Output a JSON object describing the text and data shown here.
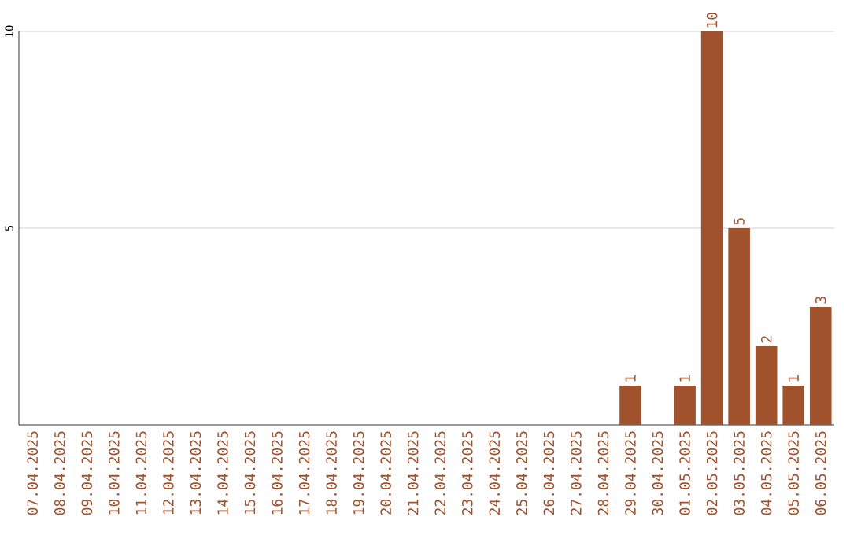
{
  "chart_data": {
    "type": "bar",
    "categories": [
      "07.04.2025",
      "08.04.2025",
      "09.04.2025",
      "10.04.2025",
      "11.04.2025",
      "12.04.2025",
      "13.04.2025",
      "14.04.2025",
      "15.04.2025",
      "16.04.2025",
      "17.04.2025",
      "18.04.2025",
      "19.04.2025",
      "20.04.2025",
      "21.04.2025",
      "22.04.2025",
      "23.04.2025",
      "24.04.2025",
      "25.04.2025",
      "26.04.2025",
      "27.04.2025",
      "28.04.2025",
      "29.04.2025",
      "30.04.2025",
      "01.05.2025",
      "02.05.2025",
      "03.05.2025",
      "04.05.2025",
      "05.05.2025",
      "06.05.2025"
    ],
    "values": [
      0,
      0,
      0,
      0,
      0,
      0,
      0,
      0,
      0,
      0,
      0,
      0,
      0,
      0,
      0,
      0,
      0,
      0,
      0,
      0,
      0,
      0,
      1,
      0,
      1,
      10,
      5,
      2,
      1,
      3
    ],
    "value_labels": [
      null,
      null,
      null,
      null,
      null,
      null,
      null,
      null,
      null,
      null,
      null,
      null,
      null,
      null,
      null,
      null,
      null,
      null,
      null,
      null,
      null,
      null,
      "1",
      null,
      "1",
      "10",
      "5",
      "2",
      "1",
      "3"
    ],
    "color": "#a0522d",
    "ylim": [
      0,
      10
    ],
    "yticks": [
      5,
      10
    ],
    "grid": "y"
  }
}
